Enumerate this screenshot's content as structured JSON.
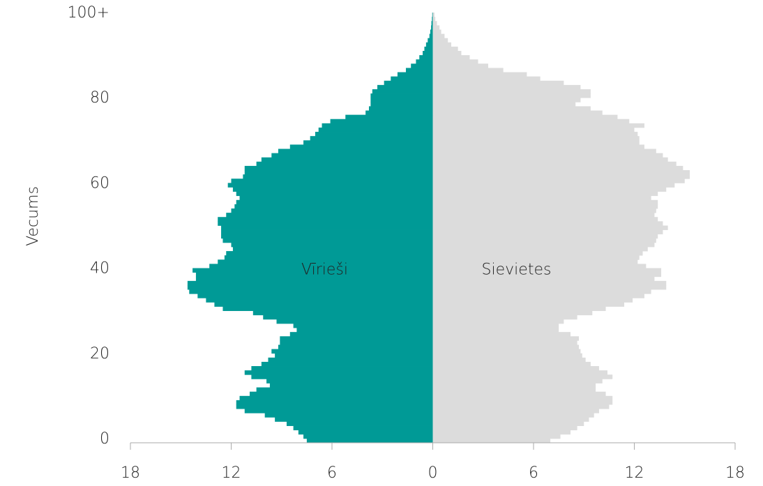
{
  "chart_data": {
    "type": "pyramid",
    "y_label": "Vecums",
    "y": [
      0,
      1,
      2,
      3,
      4,
      5,
      6,
      7,
      8,
      9,
      10,
      11,
      12,
      13,
      14,
      15,
      16,
      17,
      18,
      19,
      20,
      21,
      22,
      23,
      24,
      25,
      26,
      27,
      28,
      29,
      30,
      31,
      32,
      33,
      34,
      35,
      36,
      37,
      38,
      39,
      40,
      41,
      42,
      43,
      44,
      45,
      46,
      47,
      48,
      49,
      50,
      51,
      52,
      53,
      54,
      55,
      56,
      57,
      58,
      59,
      60,
      61,
      62,
      63,
      64,
      65,
      66,
      67,
      68,
      69,
      70,
      71,
      72,
      73,
      74,
      75,
      76,
      77,
      78,
      79,
      80,
      81,
      82,
      83,
      84,
      85,
      86,
      87,
      88,
      89,
      90,
      91,
      92,
      93,
      94,
      95,
      96,
      97,
      98,
      99,
      100
    ],
    "series": [
      {
        "name": "Vīrieši",
        "color": "#009a96",
        "side": "left",
        "values": [
          7.5,
          7.7,
          8.0,
          8.3,
          8.7,
          9.4,
          10.0,
          11.2,
          11.7,
          11.7,
          11.5,
          10.9,
          10.5,
          9.7,
          9.9,
          10.8,
          11.2,
          10.8,
          10.2,
          9.8,
          9.4,
          9.6,
          9.2,
          9.1,
          9.1,
          8.5,
          8.1,
          8.3,
          9.3,
          10.1,
          10.7,
          12.5,
          13.0,
          13.5,
          14.0,
          14.5,
          14.6,
          14.6,
          14.1,
          14.1,
          14.3,
          13.3,
          12.8,
          12.4,
          12.3,
          11.9,
          12.0,
          12.5,
          12.6,
          12.6,
          12.6,
          12.8,
          12.8,
          12.3,
          12.0,
          11.8,
          11.7,
          11.5,
          11.7,
          11.9,
          12.2,
          12.0,
          11.3,
          11.2,
          11.2,
          10.5,
          10.2,
          9.6,
          9.2,
          8.5,
          7.7,
          7.3,
          7.0,
          6.8,
          6.6,
          6.1,
          5.2,
          4.0,
          3.8,
          3.7,
          3.7,
          3.7,
          3.6,
          3.3,
          2.9,
          2.5,
          2.1,
          1.6,
          1.3,
          1.0,
          0.8,
          0.6,
          0.5,
          0.4,
          0.3,
          0.2,
          0.15,
          0.1,
          0.08,
          0.05,
          0.03
        ]
      },
      {
        "name": "Sievietes",
        "color": "#dcdcdc",
        "side": "right",
        "values": [
          7.0,
          7.6,
          8.2,
          8.6,
          9.0,
          9.3,
          9.6,
          9.9,
          10.5,
          10.7,
          10.7,
          10.3,
          9.7,
          9.7,
          10.1,
          10.7,
          10.4,
          9.9,
          9.4,
          9.1,
          8.9,
          8.8,
          8.7,
          8.6,
          8.7,
          8.2,
          7.5,
          7.5,
          7.8,
          8.6,
          9.5,
          10.3,
          11.4,
          11.9,
          12.6,
          13.0,
          13.9,
          13.9,
          13.2,
          13.6,
          13.6,
          12.7,
          12.2,
          12.3,
          12.5,
          12.8,
          13.2,
          13.3,
          13.4,
          13.7,
          14.0,
          13.7,
          13.4,
          13.2,
          13.3,
          13.4,
          13.4,
          13.0,
          13.4,
          13.9,
          14.4,
          15.0,
          15.3,
          15.3,
          14.9,
          14.5,
          14.0,
          13.7,
          13.3,
          12.6,
          12.3,
          12.3,
          12.2,
          12.0,
          12.6,
          11.7,
          11.0,
          10.1,
          9.4,
          8.5,
          8.8,
          9.4,
          9.4,
          8.8,
          7.8,
          6.4,
          5.6,
          4.2,
          3.3,
          2.7,
          2.2,
          1.7,
          1.5,
          1.1,
          0.9,
          0.7,
          0.5,
          0.4,
          0.25,
          0.15,
          0.1
        ]
      }
    ],
    "xlim": [
      -18,
      18
    ],
    "xticks": [
      {
        "value": -18,
        "label": "18"
      },
      {
        "value": -12,
        "label": "12"
      },
      {
        "value": -6,
        "label": "6"
      },
      0,
      6,
      12,
      18
    ],
    "ylim": [
      -0.5,
      100.5
    ],
    "yticks": [
      0,
      20,
      40,
      60,
      80,
      {
        "value": 100,
        "label": "100+"
      }
    ]
  }
}
